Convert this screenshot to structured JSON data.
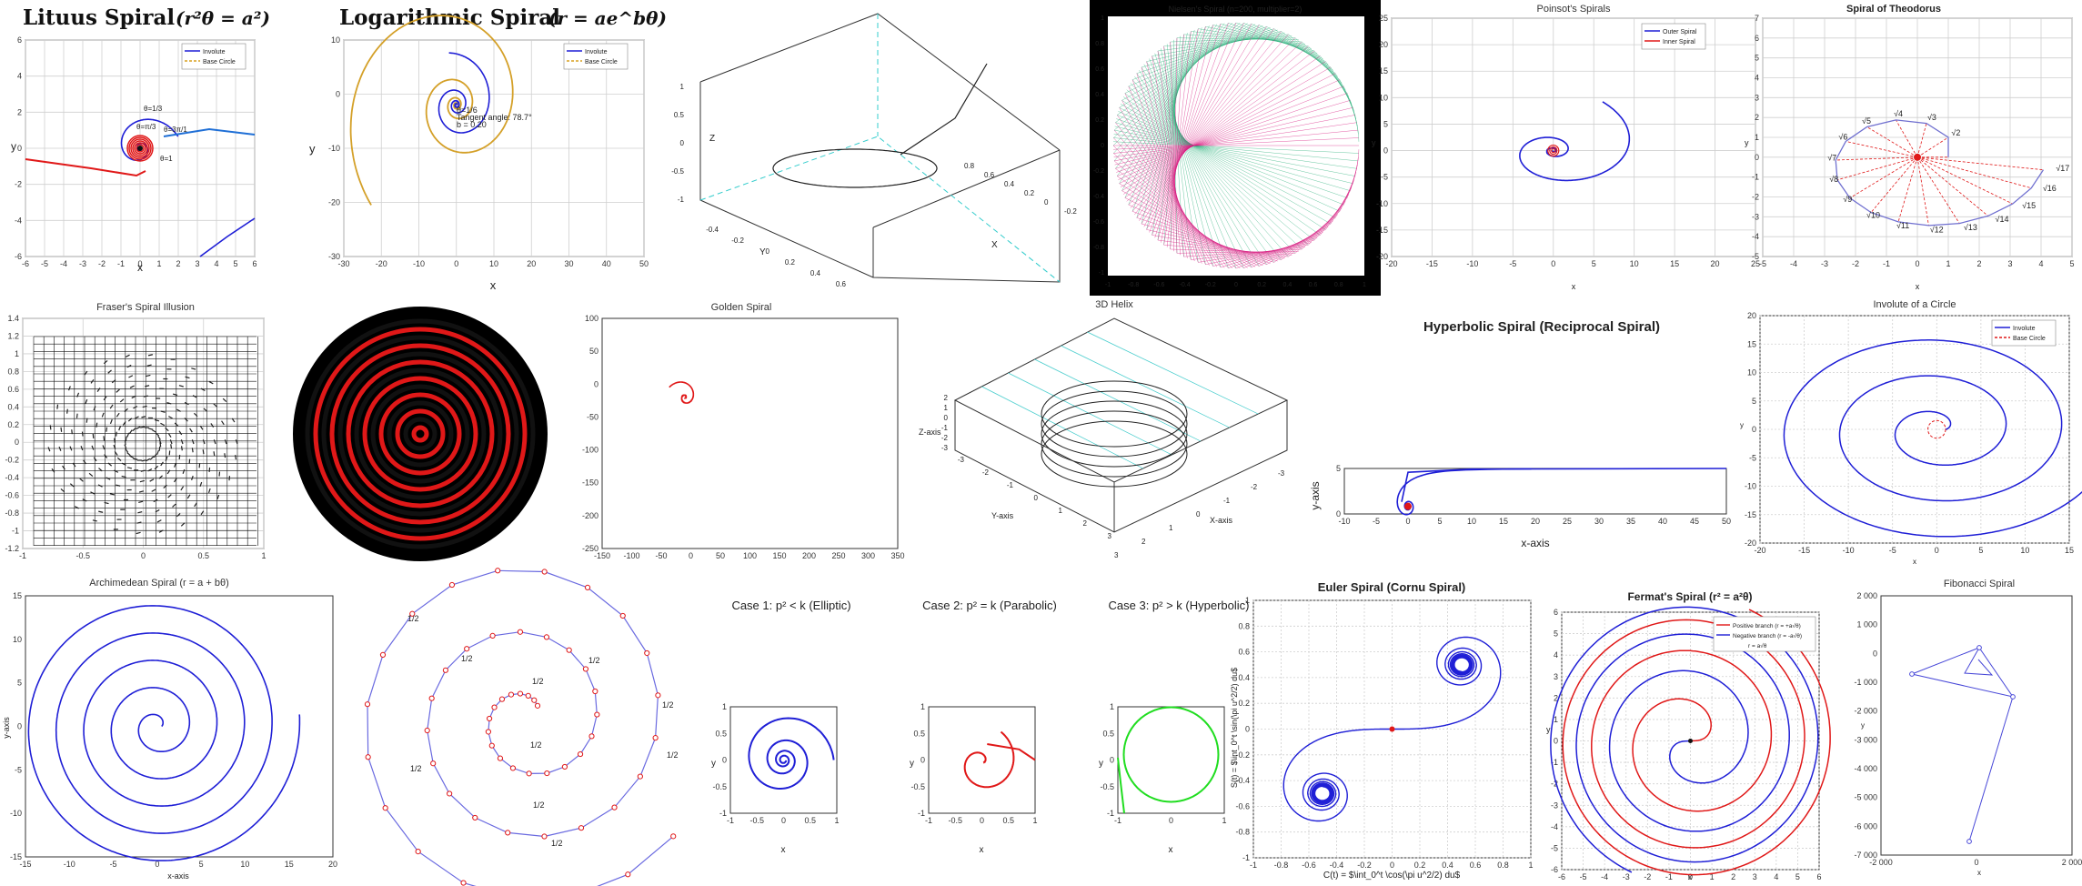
{
  "colors": {
    "blue": "#1f1fd6",
    "red": "#e01818",
    "orange": "#d8a020",
    "green": "#20dd20",
    "gold": "#d4a028",
    "teal": "#2ab07a",
    "magenta": "#d81b80",
    "gray": "#555555"
  },
  "chart_data": [
    {
      "id": "lituus",
      "type": "line",
      "title": "Lituus Spiral (r²θ = a²)",
      "title_text": "Lituus Spiral",
      "title_eq": "(r²θ = a²)",
      "xlabel": "x",
      "ylabel": "y",
      "xlim": [
        -6,
        6
      ],
      "ylim": [
        -6,
        6
      ],
      "xticks": [
        "-6",
        "-5",
        "-4",
        "-3",
        "-2",
        "-1",
        "0",
        "1",
        "2",
        "3",
        "4",
        "5",
        "6"
      ],
      "yticks": [
        "6",
        "4",
        "2",
        "0",
        "-2",
        "-4",
        "-6"
      ],
      "legend": [
        "Involute",
        "Base Circle"
      ],
      "annotations": [
        "θ=1/3",
        "θ=π/3",
        "θ=3π/1",
        "θ=1"
      ]
    },
    {
      "id": "logspiral",
      "type": "line",
      "title": "Logarithmic Spiral (r = ae^{bθ})",
      "title_text": "Logarithmic Spiral",
      "title_eq": "(r = ae^bθ)",
      "xlabel": "x",
      "ylabel": "y",
      "xlim": [
        -30,
        50
      ],
      "ylim": [
        -35,
        15
      ],
      "xticks": [
        "-30",
        "-20",
        "-10",
        "0",
        "10",
        "20",
        "30",
        "40",
        "50"
      ],
      "yticks": [
        "10",
        "0",
        "-10",
        "-20",
        "-30"
      ],
      "legend": [
        "Involute",
        "Base Circle"
      ],
      "annotations": [
        "θ=1/6",
        "Tangent angle: 78.7°",
        "b = 0.20"
      ]
    },
    {
      "id": "helix3d_a",
      "type": "line",
      "title": "",
      "xlabel": "X",
      "ylabel": "Y",
      "zlabel": "Z",
      "xticks": [
        "-0.2",
        "0",
        "0.2",
        "0.4",
        "0.6",
        "0.8"
      ],
      "yticks": [
        "-0.4",
        "-0.2",
        "0",
        "0.2",
        "0.4",
        "0.6"
      ],
      "zticks": [
        "1",
        "0.5",
        "0",
        "-0.5",
        "-1"
      ]
    },
    {
      "id": "nielsen",
      "type": "line",
      "title": "Nielsen's Spiral (n=200, multiplier=2)",
      "n": 200,
      "multiplier": 2,
      "xticks": [
        "-1",
        "-0.8",
        "-0.6",
        "-0.4",
        "-0.2",
        "0",
        "0.2",
        "0.4",
        "0.6",
        "0.8",
        "1"
      ],
      "yticks": [
        "1",
        "0.8",
        "0.6",
        "0.4",
        "0.2",
        "0",
        "-0.2",
        "-0.4",
        "-0.6",
        "-0.8",
        "-1"
      ]
    },
    {
      "id": "poinsot",
      "type": "line",
      "title": "Poinsot's Spirals",
      "xlabel": "x",
      "ylabel": "y",
      "xlim": [
        -20,
        25
      ],
      "ylim": [
        -20,
        25
      ],
      "xticks": [
        "-20",
        "-15",
        "-10",
        "-5",
        "0",
        "5",
        "10",
        "15",
        "20",
        "25"
      ],
      "yticks": [
        "25",
        "20",
        "15",
        "10",
        "5",
        "0",
        "-5",
        "-10",
        "-15",
        "-20"
      ],
      "legend": [
        "Outer Spiral",
        "Inner Spiral"
      ]
    },
    {
      "id": "theodorus",
      "type": "line",
      "title": "Spiral of Theodorus",
      "xlabel": "x",
      "ylabel": "y",
      "xlim": [
        -5,
        5
      ],
      "ylim": [
        -5,
        7
      ],
      "xticks": [
        "-5",
        "-4",
        "-3",
        "-2",
        "-1",
        "0",
        "1",
        "2",
        "3",
        "4",
        "5"
      ],
      "yticks": [
        "7",
        "6",
        "5",
        "4",
        "3",
        "2",
        "1",
        "0",
        "-1",
        "-2",
        "-3",
        "-4",
        "-5"
      ],
      "labels": [
        "√2",
        "√3",
        "√4",
        "√5",
        "√6",
        "√7",
        "√8",
        "√9",
        "√10",
        "√11",
        "√12",
        "√13",
        "√14",
        "√15",
        "√16",
        "√17"
      ]
    },
    {
      "id": "fraser",
      "type": "scatter",
      "title": "Fraser's Spiral Illusion",
      "xlim": [
        -1.2,
        1.2
      ],
      "ylim": [
        -1.2,
        1.4
      ],
      "xticks": [
        "-1",
        "-0.5",
        "0",
        "0.5",
        "1"
      ],
      "yticks": [
        "1.4",
        "1.2",
        "1",
        "0.8",
        "0.6",
        "0.4",
        "0.2",
        "0",
        "-0.2",
        "-0.4",
        "-0.6",
        "-0.8",
        "-1",
        "-1.2"
      ]
    },
    {
      "id": "rings",
      "type": "area",
      "title": ""
    },
    {
      "id": "golden",
      "type": "line",
      "title": "Golden Spiral",
      "xlim": [
        -150,
        350
      ],
      "ylim": [
        -250,
        100
      ],
      "xticks": [
        "-150",
        "-100",
        "-50",
        "0",
        "50",
        "100",
        "150",
        "200",
        "250",
        "300",
        "350"
      ],
      "yticks": [
        "100",
        "50",
        "0",
        "-50",
        "-100",
        "-150",
        "-200",
        "-250"
      ]
    },
    {
      "id": "helix3d_b",
      "type": "line",
      "title": "3D Helix",
      "xlabel": "X-axis",
      "ylabel": "Y-axis",
      "zlabel": "Z-axis",
      "xticks": [
        "-3",
        "-2",
        "-1",
        "0",
        "1",
        "2",
        "3"
      ],
      "yticks": [
        "-3",
        "-2",
        "-1",
        "0",
        "1",
        "2",
        "3"
      ],
      "zticks": [
        "2",
        "1",
        "0",
        "-1",
        "-2",
        "-3"
      ]
    },
    {
      "id": "hyperbolic",
      "type": "line",
      "title": "Hyperbolic Spiral (Reciprocal Spiral)",
      "xlabel": "x-axis",
      "ylabel": "y-axis",
      "xlim": [
        -10,
        50
      ],
      "ylim": [
        -1,
        5
      ],
      "xticks": [
        "-10",
        "-5",
        "0",
        "5",
        "10",
        "15",
        "20",
        "25",
        "30",
        "35",
        "40",
        "45",
        "50"
      ],
      "yticks": [
        "5",
        "0"
      ]
    },
    {
      "id": "involute",
      "type": "line",
      "title": "Involute of a Circle",
      "xlabel": "x",
      "ylabel": "y",
      "xlim": [
        -20,
        15
      ],
      "ylim": [
        -20,
        20
      ],
      "xticks": [
        "-20",
        "-15",
        "-10",
        "-5",
        "0",
        "5",
        "10",
        "15"
      ],
      "yticks": [
        "20",
        "15",
        "10",
        "5",
        "0",
        "-5",
        "-10",
        "-15",
        "-20"
      ],
      "legend": [
        "Involute",
        "Base Circle"
      ]
    },
    {
      "id": "archimedean",
      "type": "line",
      "title": "Archimedean Spiral (r = a + bθ)",
      "xlabel": "x-axis",
      "ylabel": "y-axis",
      "xlim": [
        -15,
        20
      ],
      "ylim": [
        -15,
        15
      ],
      "xticks": [
        "-15",
        "-10",
        "-5",
        "0",
        "5",
        "10",
        "15",
        "20"
      ],
      "yticks": [
        "15",
        "10",
        "5",
        "0",
        "-5",
        "-10",
        "-15"
      ]
    },
    {
      "id": "polygonal",
      "type": "line",
      "title": "",
      "labels": [
        "1/2",
        "1/2",
        "1/2",
        "1/2",
        "1/2",
        "1/2",
        "1/2",
        "1/2",
        "1/2",
        "1/2"
      ]
    },
    {
      "id": "case1",
      "type": "line",
      "title": "Case 1: p² < k (Elliptic)",
      "xlabel": "x",
      "ylabel": "y",
      "xlim": [
        -1,
        1
      ],
      "ylim": [
        -1,
        1
      ],
      "xticks": [
        "-1",
        "-0.5",
        "0",
        "0.5",
        "1"
      ],
      "yticks": [
        "1",
        "0.5",
        "0",
        "-0.5",
        "-1"
      ]
    },
    {
      "id": "case2",
      "type": "line",
      "title": "Case 2: p² = k (Parabolic)",
      "xlabel": "x",
      "ylabel": "y",
      "xlim": [
        -1,
        1
      ],
      "ylim": [
        -1,
        1
      ],
      "xticks": [
        "-1",
        "-0.5",
        "0",
        "0.5",
        "1"
      ],
      "yticks": [
        "1",
        "0.5",
        "0",
        "-0.5",
        "-1"
      ]
    },
    {
      "id": "case3",
      "type": "line",
      "title": "Case 3: p² > k (Hyperbolic)",
      "xlabel": "x",
      "ylabel": "y",
      "xlim": [
        -1,
        1
      ],
      "ylim": [
        -1,
        1
      ],
      "xticks": [
        "-1",
        "0",
        "1"
      ],
      "yticks": [
        "1",
        "0.5",
        "0",
        "-0.5",
        "-1"
      ]
    },
    {
      "id": "euler",
      "type": "line",
      "title": "Euler Spiral (Cornu Spiral)",
      "xlabel": "C(t) = $\\int_0^t \\cos(\\pi u^2/2) du$",
      "ylabel": "S(t) = $\\int_0^t \\sin(\\pi u^2/2) du$",
      "xlim": [
        -1,
        1
      ],
      "ylim": [
        -1,
        1
      ],
      "xticks": [
        "-1",
        "-0.8",
        "-0.6",
        "-0.4",
        "-0.2",
        "0",
        "0.2",
        "0.4",
        "0.6",
        "0.8",
        "1"
      ],
      "yticks": [
        "1",
        "0.8",
        "0.6",
        "0.4",
        "0.2",
        "0",
        "-0.2",
        "-0.4",
        "-0.6",
        "-0.8",
        "-1"
      ]
    },
    {
      "id": "fermat",
      "type": "line",
      "title": "Fermat's Spiral (r² = a²θ)",
      "xlabel": "x",
      "ylabel": "y",
      "xlim": [
        -6,
        6
      ],
      "ylim": [
        -6,
        6
      ],
      "xticks": [
        "-6",
        "-5",
        "-4",
        "-3",
        "-2",
        "-1",
        "0",
        "1",
        "2",
        "3",
        "4",
        "5",
        "6"
      ],
      "yticks": [
        "6",
        "5",
        "4",
        "3",
        "2",
        "1",
        "0",
        "-1",
        "-2",
        "-3",
        "-4",
        "-5",
        "-6"
      ],
      "legend": [
        "Positive branch (r = +a√θ)",
        "Negative branch (r = -a√θ)",
        "r = a√θ"
      ]
    },
    {
      "id": "fibonacci",
      "type": "line",
      "title": "Fibonacci Spiral",
      "xlabel": "x",
      "ylabel": "y",
      "xticks": [
        "-2 000",
        "0",
        "2 000"
      ],
      "yticks": [
        "2 000",
        "1 000",
        "0",
        "-1 000",
        "-2 000",
        "-3 000",
        "-4 000",
        "-5 000",
        "-6 000",
        "-7 000"
      ]
    }
  ]
}
